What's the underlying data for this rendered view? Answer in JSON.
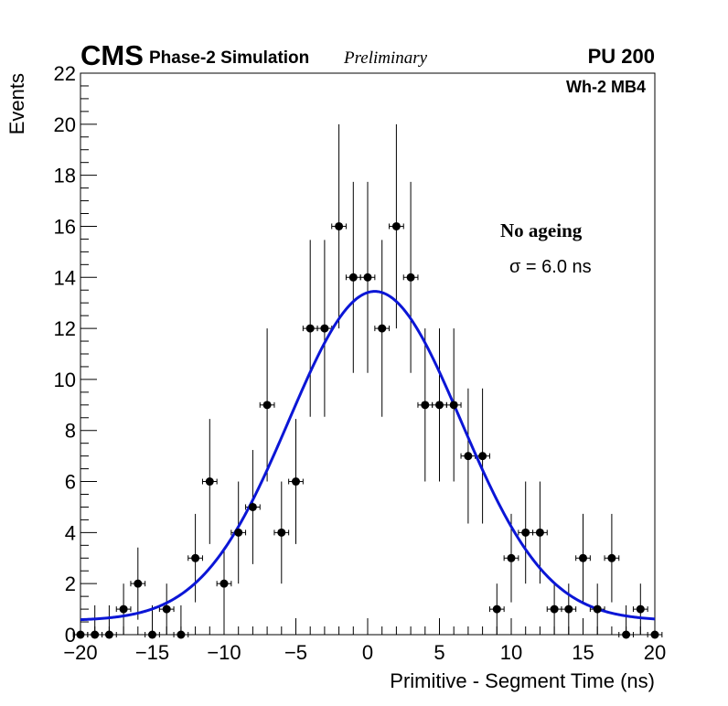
{
  "header": {
    "experiment": "CMS",
    "subtitle": "Phase-2 Simulation",
    "status": "Preliminary",
    "pileup": "PU 200"
  },
  "chart_data": {
    "type": "scatter",
    "title": "",
    "xlabel": "Primitive - Segment Time (ns)",
    "ylabel": "Events",
    "xlim": [
      -20,
      20
    ],
    "ylim": [
      0,
      22
    ],
    "x_ticks": [
      -20,
      -15,
      -10,
      -5,
      0,
      5,
      10,
      15,
      20
    ],
    "x_tick_labels": [
      "−20",
      "−15",
      "−10",
      "−5",
      "0",
      "5",
      "10",
      "15",
      "20"
    ],
    "y_ticks": [
      0,
      2,
      4,
      6,
      8,
      10,
      12,
      14,
      16,
      18,
      20,
      22
    ],
    "bin_width": 1,
    "series": [
      {
        "name": "Simulation",
        "marker": "circle",
        "color": "#000000",
        "x": [
          -20,
          -19,
          -18,
          -17,
          -16,
          -15,
          -14,
          -13,
          -12,
          -11,
          -10,
          -9,
          -8,
          -7,
          -6,
          -5,
          -4,
          -3,
          -2,
          -1,
          0,
          1,
          2,
          3,
          4,
          5,
          6,
          7,
          8,
          9,
          10,
          11,
          12,
          13,
          14,
          15,
          16,
          17,
          18,
          19,
          20
        ],
        "y": [
          0,
          0,
          0,
          1,
          2,
          0,
          1,
          0,
          3,
          6,
          2,
          4,
          5,
          9,
          4,
          6,
          12,
          12,
          16,
          14,
          14,
          12,
          16,
          14,
          9,
          9,
          9,
          7,
          7,
          1,
          3,
          4,
          4,
          1,
          1,
          3,
          1,
          3,
          0,
          1,
          0
        ]
      },
      {
        "name": "Gaussian fit",
        "type": "line",
        "color": "#0b16d6",
        "mean": 0.5,
        "amplitude": 12.9,
        "sigma": 6.0,
        "baseline": 0.55
      }
    ],
    "annotations": {
      "region": "Wh-2 MB4",
      "condition": "No ageing",
      "sigma": "σ = 6.0 ns"
    }
  }
}
